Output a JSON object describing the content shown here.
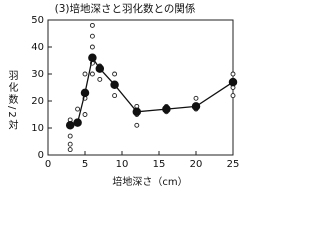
{
  "chart_data": {
    "type": "scatter",
    "title": "(3)培地深さと羽化数との関係",
    "xlabel": "培地深さ（cm）",
    "ylabel": "羽化数/2対",
    "xlim": [
      0,
      25
    ],
    "xticks": [
      0,
      5,
      10,
      15,
      20,
      25
    ],
    "ylim": [
      0,
      50
    ],
    "yticks": [
      0,
      10,
      20,
      30,
      40,
      50
    ],
    "series": [
      {
        "marker": "open",
        "line": false,
        "color": "#222",
        "x": [
          3,
          3,
          3,
          3,
          4,
          4,
          5,
          5,
          5,
          6,
          6,
          6,
          6,
          6,
          7,
          7,
          9,
          9,
          9,
          12,
          12,
          12,
          16,
          16,
          20,
          20,
          25,
          25,
          25
        ],
        "values": [
          2,
          4,
          7,
          13,
          17,
          12,
          15,
          21,
          30,
          44,
          48,
          40,
          34,
          30,
          33,
          28,
          26,
          22,
          30,
          18,
          15,
          11,
          16,
          18,
          17,
          21,
          25,
          30,
          22
        ]
      },
      {
        "marker": "filled",
        "line": true,
        "color": "#111",
        "x": [
          3,
          4,
          5,
          6,
          7,
          9,
          12,
          16,
          20,
          25
        ],
        "values": [
          11,
          12,
          23,
          36,
          32,
          26,
          16,
          17,
          18,
          27
        ]
      }
    ]
  }
}
